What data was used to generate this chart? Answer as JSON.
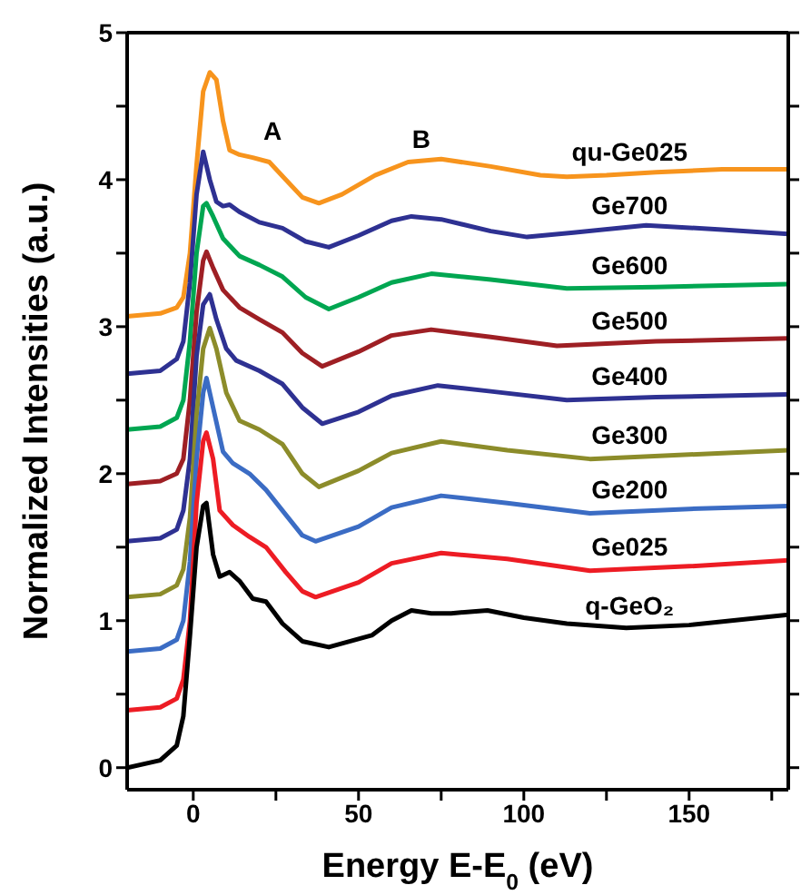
{
  "chart_data": {
    "type": "line",
    "xlabel": "Energy E-E$_{0}$ (eV)",
    "ylabel": "Normalized Intensities (a.u.)",
    "xlim": [
      -20,
      180
    ],
    "xticks": [
      0,
      {
        "value": 25,
        "label": null
      },
      50,
      {
        "value": 75,
        "label": null
      },
      100,
      {
        "value": 125,
        "label": null
      },
      150,
      {
        "value": 175,
        "label": null
      }
    ],
    "ylim": [
      -0.15,
      5
    ],
    "yticks": [
      0,
      {
        "value": 0.5,
        "label": null
      },
      1,
      {
        "value": 1.5,
        "label": null
      },
      2,
      {
        "value": 2.5,
        "label": null
      },
      3,
      {
        "value": 3.5,
        "label": null
      },
      4,
      {
        "value": 4.5,
        "label": null
      },
      5
    ],
    "grid": false,
    "legend": false,
    "marker": "none",
    "line_style": "solid",
    "annotations": [
      "A",
      "B"
    ],
    "series": [
      {
        "name": "qu-Ge025",
        "color": "#f7941d",
        "x": [
          -20,
          -10,
          -5,
          -3,
          -1,
          1,
          3,
          5,
          7,
          9,
          11,
          14,
          18,
          23,
          28,
          33,
          38,
          45,
          55,
          65,
          75,
          90,
          105,
          113,
          125,
          140,
          160,
          180
        ],
        "values": [
          3.07,
          3.09,
          3.13,
          3.2,
          3.5,
          4.1,
          4.6,
          4.73,
          4.68,
          4.4,
          4.2,
          4.17,
          4.15,
          4.12,
          4.0,
          3.88,
          3.84,
          3.9,
          4.03,
          4.12,
          4.14,
          4.09,
          4.03,
          4.02,
          4.03,
          4.05,
          4.07,
          4.07
        ]
      },
      {
        "name": "Ge700",
        "color": "#2e3192",
        "x": [
          -20,
          -10,
          -5,
          -3,
          -1,
          1,
          3,
          5,
          7,
          9,
          11,
          14,
          20,
          27,
          34,
          41,
          50,
          60,
          66,
          75,
          90,
          101,
          115,
          137,
          160,
          180
        ],
        "values": [
          2.68,
          2.7,
          2.78,
          2.9,
          3.3,
          3.9,
          4.19,
          4.0,
          3.85,
          3.82,
          3.83,
          3.78,
          3.71,
          3.67,
          3.58,
          3.54,
          3.62,
          3.72,
          3.75,
          3.73,
          3.65,
          3.61,
          3.64,
          3.69,
          3.66,
          3.63
        ]
      },
      {
        "name": "Ge600",
        "color": "#00a651",
        "x": [
          -20,
          -10,
          -5,
          -3,
          -1,
          1,
          3,
          4,
          6,
          9,
          14,
          20,
          27,
          34,
          41,
          50,
          60,
          72,
          90,
          113,
          140,
          180
        ],
        "values": [
          2.3,
          2.32,
          2.38,
          2.5,
          2.9,
          3.5,
          3.82,
          3.84,
          3.75,
          3.6,
          3.48,
          3.42,
          3.34,
          3.2,
          3.12,
          3.2,
          3.3,
          3.36,
          3.32,
          3.26,
          3.27,
          3.29
        ]
      },
      {
        "name": "Ge500",
        "color": "#9e1f24",
        "x": [
          -20,
          -10,
          -5,
          -3,
          -1,
          1,
          3,
          4,
          6,
          9,
          14,
          20,
          27,
          33,
          39,
          50,
          60,
          72,
          90,
          110,
          140,
          180
        ],
        "values": [
          1.93,
          1.95,
          2.0,
          2.1,
          2.5,
          3.1,
          3.45,
          3.51,
          3.4,
          3.25,
          3.13,
          3.05,
          2.96,
          2.82,
          2.73,
          2.83,
          2.94,
          2.98,
          2.93,
          2.87,
          2.9,
          2.92
        ]
      },
      {
        "name": "Ge400",
        "color": "#2e3192",
        "x": [
          -20,
          -10,
          -5,
          -3,
          -1,
          1,
          3,
          5,
          7,
          10,
          13,
          20,
          27,
          33,
          39,
          50,
          60,
          74,
          90,
          113,
          140,
          180
        ],
        "values": [
          1.54,
          1.56,
          1.62,
          1.75,
          2.1,
          2.8,
          3.15,
          3.22,
          3.05,
          2.85,
          2.77,
          2.7,
          2.61,
          2.45,
          2.34,
          2.42,
          2.53,
          2.6,
          2.56,
          2.5,
          2.52,
          2.54
        ]
      },
      {
        "name": "Ge300",
        "color": "#8c8c2a",
        "x": [
          -20,
          -10,
          -5,
          -3,
          -1,
          1,
          3,
          5,
          7,
          10,
          14,
          20,
          27,
          33,
          38,
          50,
          60,
          75,
          95,
          120,
          150,
          180
        ],
        "values": [
          1.16,
          1.18,
          1.24,
          1.35,
          1.7,
          2.4,
          2.85,
          2.99,
          2.85,
          2.55,
          2.36,
          2.3,
          2.2,
          2.0,
          1.91,
          2.02,
          2.14,
          2.22,
          2.16,
          2.1,
          2.13,
          2.16
        ]
      },
      {
        "name": "Ge200",
        "color": "#3b6cc4",
        "x": [
          -20,
          -10,
          -5,
          -3,
          -1,
          1,
          3,
          4,
          6,
          9,
          12,
          17,
          22,
          28,
          33,
          37,
          50,
          60,
          75,
          95,
          120,
          150,
          180
        ],
        "values": [
          0.79,
          0.81,
          0.87,
          1.0,
          1.4,
          2.1,
          2.55,
          2.65,
          2.45,
          2.15,
          2.07,
          2.0,
          1.89,
          1.72,
          1.58,
          1.54,
          1.64,
          1.77,
          1.85,
          1.8,
          1.73,
          1.76,
          1.78
        ]
      },
      {
        "name": "Ge025",
        "color": "#ed1c24",
        "x": [
          -20,
          -10,
          -5,
          -3,
          -1,
          1,
          3,
          4,
          6,
          8,
          12,
          17,
          22,
          28,
          33,
          37,
          50,
          60,
          75,
          95,
          120,
          150,
          180
        ],
        "values": [
          0.39,
          0.41,
          0.47,
          0.6,
          1.0,
          1.8,
          2.22,
          2.28,
          2.1,
          1.75,
          1.65,
          1.57,
          1.5,
          1.33,
          1.2,
          1.16,
          1.26,
          1.39,
          1.46,
          1.42,
          1.34,
          1.37,
          1.41
        ]
      },
      {
        "name": "q-GeO₂",
        "color": "#000000",
        "x": [
          -20,
          -10,
          -5,
          -3,
          -1,
          1,
          3,
          4,
          6,
          8,
          11,
          14,
          18,
          22,
          27,
          33,
          41,
          54,
          60,
          66,
          72,
          78,
          89,
          100,
          113,
          131,
          150,
          180
        ],
        "values": [
          0.0,
          0.05,
          0.15,
          0.35,
          0.9,
          1.5,
          1.78,
          1.8,
          1.45,
          1.3,
          1.33,
          1.27,
          1.15,
          1.13,
          0.98,
          0.86,
          0.82,
          0.9,
          1.0,
          1.07,
          1.05,
          1.05,
          1.07,
          1.02,
          0.98,
          0.95,
          0.97,
          1.04
        ]
      }
    ]
  }
}
